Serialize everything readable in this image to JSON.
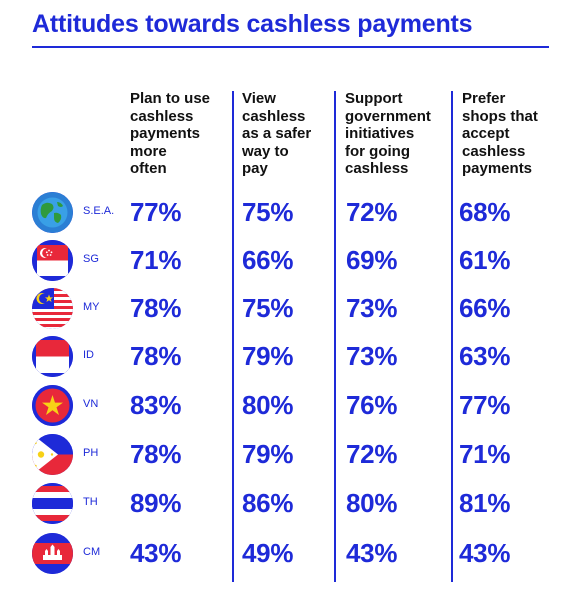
{
  "chart_data": {
    "type": "table",
    "title": "Attitudes towards cashless payments",
    "columns": [
      {
        "key": "plan",
        "label_lines": [
          "Plan to use",
          "cashless",
          "payments",
          "more",
          "often"
        ]
      },
      {
        "key": "safer",
        "label_lines": [
          "View",
          "cashless",
          "as a safer",
          "way to",
          "pay"
        ]
      },
      {
        "key": "support",
        "label_lines": [
          "Support",
          "government",
          "initiatives",
          "for going",
          "cashless"
        ]
      },
      {
        "key": "prefer",
        "label_lines": [
          "Prefer",
          "shops that",
          "accept",
          "cashless",
          "payments"
        ]
      }
    ],
    "rows": [
      {
        "code": "S.E.A.",
        "flag_icon": "globe-icon",
        "values": [
          "77%",
          "75%",
          "72%",
          "68%"
        ]
      },
      {
        "code": "SG",
        "flag_icon": "singapore-flag-icon",
        "values": [
          "71%",
          "66%",
          "69%",
          "61%"
        ]
      },
      {
        "code": "MY",
        "flag_icon": "malaysia-flag-icon",
        "values": [
          "78%",
          "75%",
          "73%",
          "66%"
        ]
      },
      {
        "code": "ID",
        "flag_icon": "indonesia-flag-icon",
        "values": [
          "78%",
          "79%",
          "73%",
          "63%"
        ]
      },
      {
        "code": "VN",
        "flag_icon": "vietnam-flag-icon",
        "values": [
          "83%",
          "80%",
          "76%",
          "77%"
        ]
      },
      {
        "code": "PH",
        "flag_icon": "philippines-flag-icon",
        "values": [
          "78%",
          "79%",
          "72%",
          "71%"
        ]
      },
      {
        "code": "TH",
        "flag_icon": "thailand-flag-icon",
        "values": [
          "89%",
          "86%",
          "80%",
          "81%"
        ]
      },
      {
        "code": "CM",
        "flag_icon": "cambodia-flag-icon",
        "values": [
          "43%",
          "49%",
          "43%",
          "43%"
        ]
      }
    ]
  },
  "colors": {
    "accent": "#1e2ad8",
    "header_text": "#111111"
  }
}
